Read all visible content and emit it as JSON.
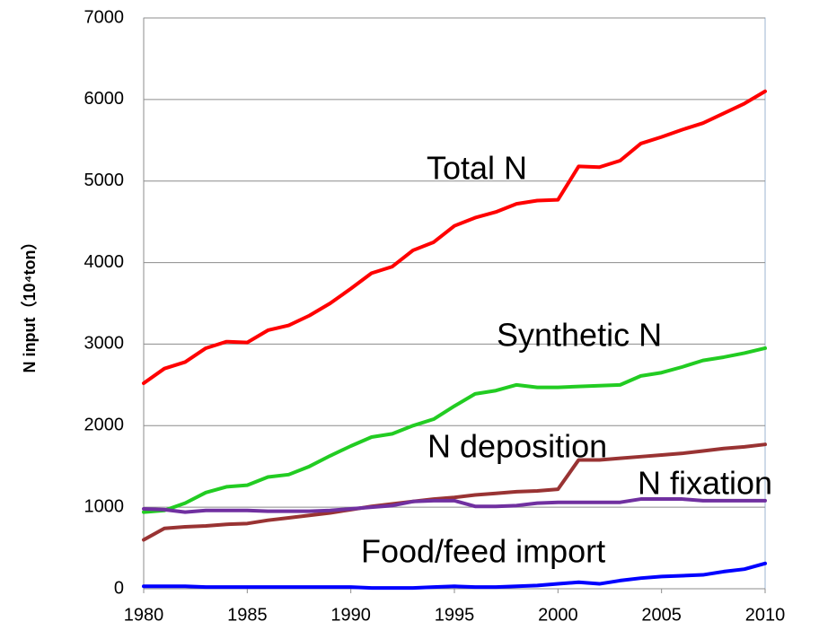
{
  "chart_data": {
    "type": "line",
    "y_label": "N input（10⁴ton）",
    "x": [
      1980,
      1981,
      1982,
      1983,
      1984,
      1985,
      1986,
      1987,
      1988,
      1989,
      1990,
      1991,
      1992,
      1993,
      1994,
      1995,
      1996,
      1997,
      1998,
      1999,
      2000,
      2001,
      2002,
      2003,
      2004,
      2005,
      2006,
      2007,
      2008,
      2009,
      2010
    ],
    "xlim": [
      1980,
      2010
    ],
    "xticks": [
      1980,
      1985,
      1990,
      1995,
      2000,
      2005,
      2010
    ],
    "ylim": [
      0,
      7000
    ],
    "yticks": [
      0,
      1000,
      2000,
      3000,
      4000,
      5000,
      6000,
      7000
    ],
    "grid": true,
    "annotations": [
      "Total N",
      "Synthetic N",
      "N deposition",
      "N fixation",
      "Food/feed import"
    ],
    "series": [
      {
        "color": "#ff0000",
        "values": [
          2520,
          2700,
          2780,
          2950,
          3030,
          3020,
          3170,
          3230,
          3350,
          3500,
          3680,
          3870,
          3950,
          4150,
          4250,
          4450,
          4550,
          4620,
          4720,
          4760,
          4770,
          5180,
          5170,
          5250,
          5460,
          5540,
          5630,
          5710,
          5830,
          5950,
          6100
        ]
      },
      {
        "color": "#22cc22",
        "values": [
          940,
          960,
          1050,
          1180,
          1250,
          1270,
          1370,
          1400,
          1500,
          1630,
          1750,
          1860,
          1900,
          2000,
          2080,
          2240,
          2390,
          2430,
          2500,
          2470,
          2470,
          2480,
          2490,
          2500,
          2610,
          2650,
          2720,
          2800,
          2840,
          2890,
          2950
        ]
      },
      {
        "color": "#993333",
        "values": [
          600,
          740,
          760,
          770,
          790,
          800,
          840,
          870,
          900,
          930,
          970,
          1010,
          1040,
          1070,
          1100,
          1120,
          1150,
          1170,
          1190,
          1200,
          1220,
          1580,
          1580,
          1600,
          1620,
          1640,
          1660,
          1690,
          1720,
          1740,
          1770
        ]
      },
      {
        "color": "#7030a0",
        "values": [
          980,
          970,
          940,
          960,
          960,
          960,
          950,
          950,
          950,
          960,
          980,
          1000,
          1020,
          1070,
          1080,
          1080,
          1010,
          1010,
          1020,
          1050,
          1060,
          1060,
          1060,
          1060,
          1100,
          1100,
          1100,
          1080,
          1080,
          1080,
          1080
        ]
      },
      {
        "color": "#0000ff",
        "values": [
          30,
          30,
          30,
          20,
          20,
          20,
          20,
          20,
          20,
          20,
          20,
          10,
          10,
          10,
          20,
          30,
          20,
          20,
          30,
          40,
          60,
          80,
          60,
          100,
          130,
          150,
          160,
          170,
          210,
          240,
          310
        ]
      }
    ]
  }
}
